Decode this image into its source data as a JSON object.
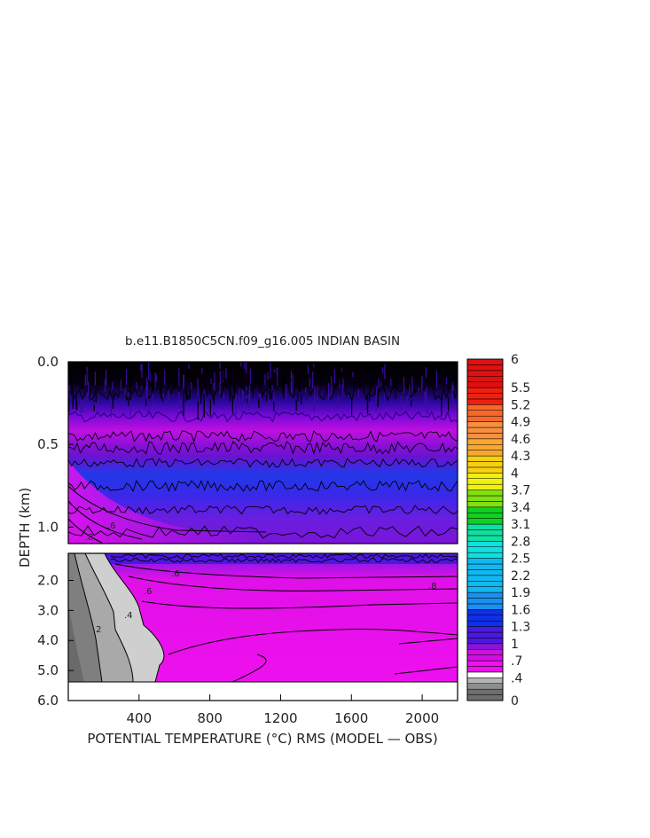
{
  "chart_data": {
    "type": "heatmap",
    "title": "b.e11.B1850C5CN.f09_g16.005 INDIAN BASIN",
    "xlabel": "POTENTIAL TEMPERATURE (°C) RMS (MODEL — OBS)",
    "ylabel": "DEPTH (km)",
    "xlim": [
      0,
      2200
    ],
    "x_ticks": [
      "400",
      "800",
      "1200",
      "1600",
      "2000"
    ],
    "upper_panel": {
      "ylim": [
        0.0,
        1.1
      ],
      "y_ticks": [
        "0.0",
        "0.5",
        "1.0"
      ]
    },
    "lower_panel": {
      "ylim": [
        1.1,
        6.0
      ],
      "y_ticks": [
        "2.0",
        "3.0",
        "4.0",
        "5.0",
        "6.0"
      ]
    },
    "colorbar": {
      "range": [
        0,
        6
      ],
      "labels": [
        "6",
        "5.5",
        "5.2",
        "4.9",
        "4.6",
        "4.3",
        "4",
        "3.7",
        "3.4",
        "3.1",
        "2.8",
        "2.5",
        "2.2",
        "1.9",
        "1.6",
        "1.3",
        "1",
        ".7",
        ".4",
        "0"
      ]
    },
    "contour_labels": [
      ".6",
      ".8",
      ".6",
      ".4",
      ".2",
      ".6",
      ".8"
    ],
    "grid": false,
    "legend": "right colorbar"
  }
}
